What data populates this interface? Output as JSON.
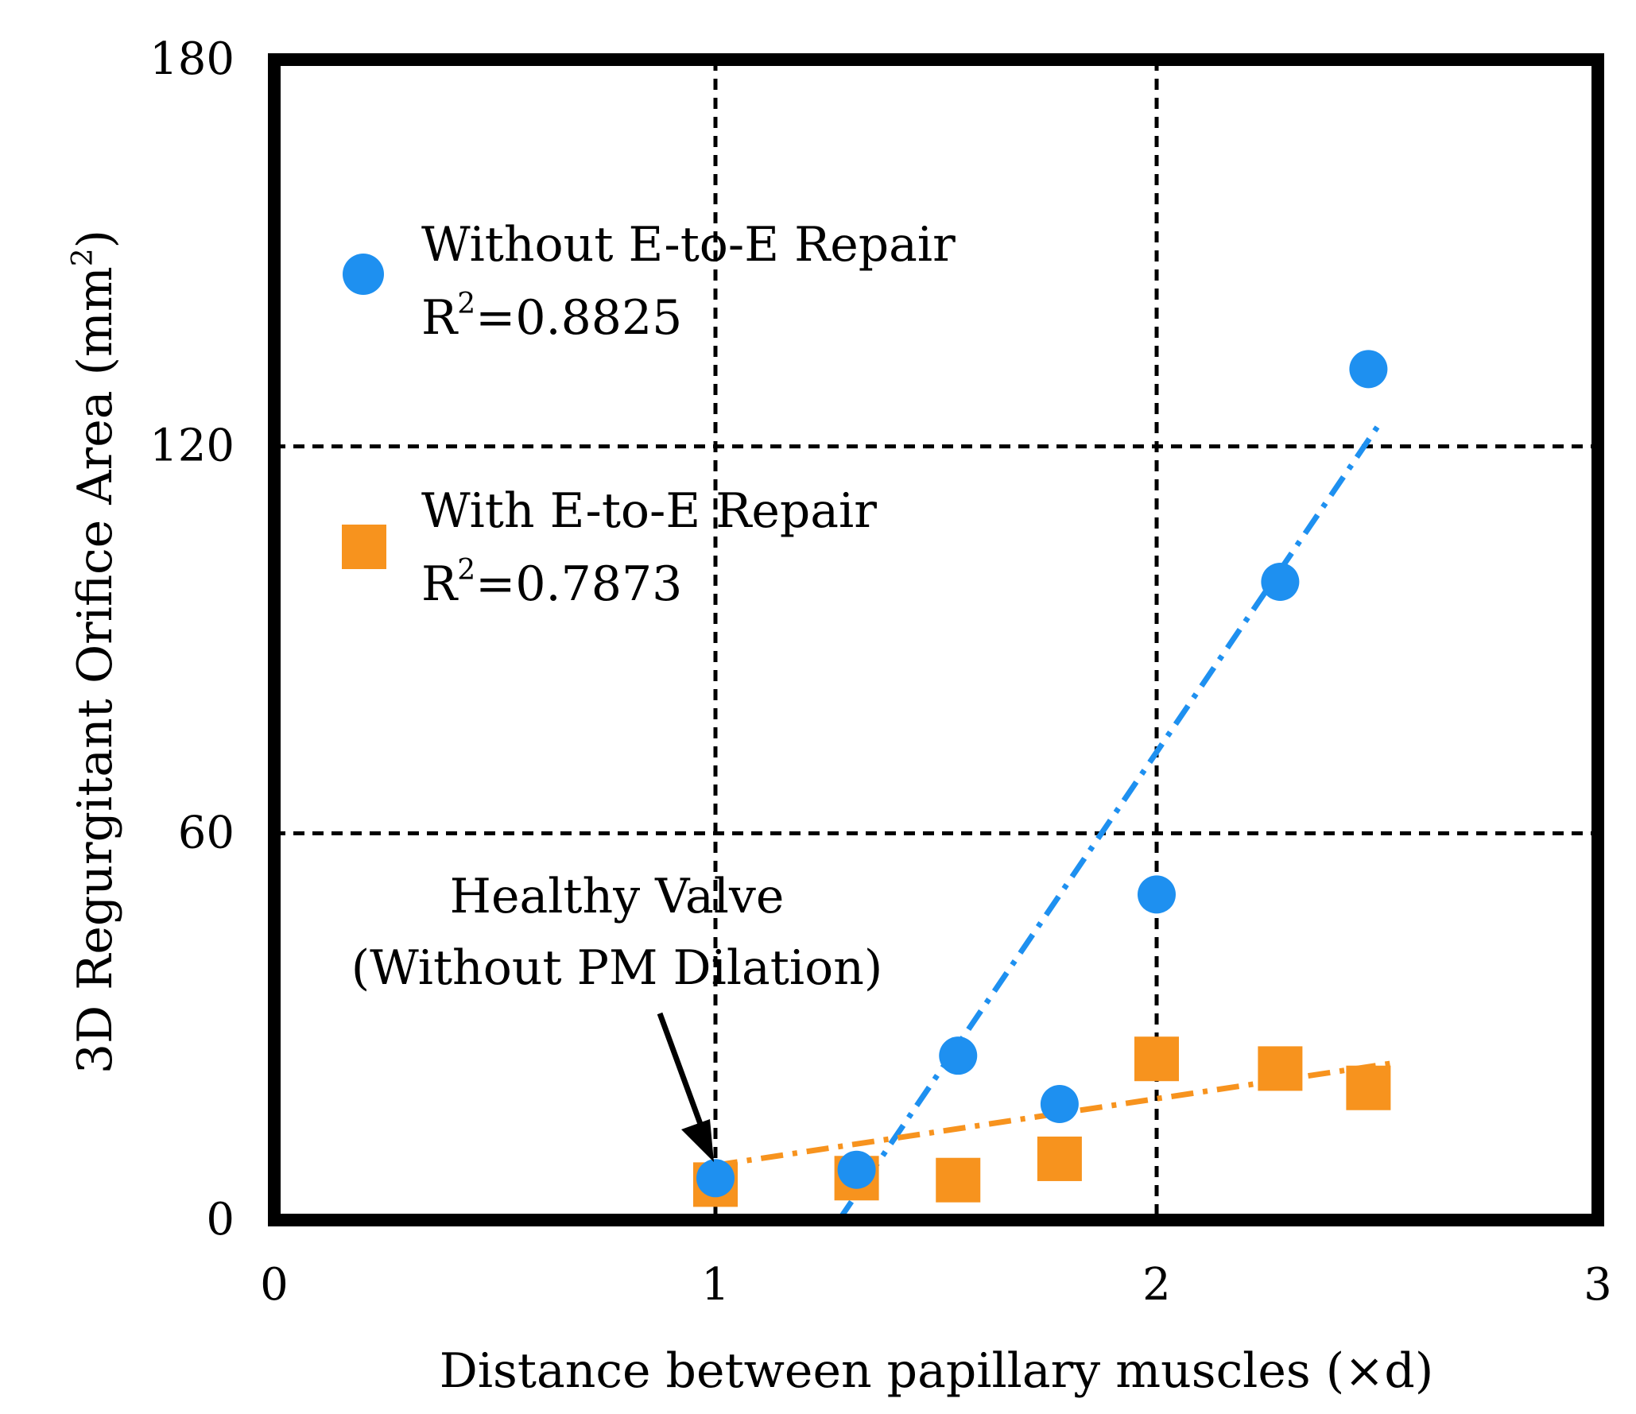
{
  "chart_data": {
    "type": "scatter",
    "xlabel": "Distance between papillary muscles (×d)",
    "ylabel_main": "3D Regurgitant Orifice Area (mm",
    "ylabel_sup": "2",
    "ylabel_close": ")",
    "xlim": [
      0,
      3
    ],
    "ylim": [
      0,
      180
    ],
    "x_ticks": [
      "0",
      "1",
      "2",
      "3"
    ],
    "y_ticks": [
      "0",
      "60",
      "120",
      "180"
    ],
    "x_tick_values": [
      0,
      1,
      2,
      3
    ],
    "y_tick_values": [
      0,
      60,
      120,
      180
    ],
    "gridlines": {
      "x": [
        1,
        2
      ],
      "y": [
        60,
        120
      ],
      "style": "dashed"
    },
    "series": [
      {
        "name": "Without E-to-E Repair",
        "r2_prefix": "R",
        "r2_sup": "2",
        "r2_value": "=0.8825",
        "marker": "circle",
        "color": "#1E90F0",
        "points": [
          {
            "x": 1.0,
            "y": 6.5
          },
          {
            "x": 1.32,
            "y": 7.8
          },
          {
            "x": 1.55,
            "y": 25.5
          },
          {
            "x": 1.78,
            "y": 18.0
          },
          {
            "x": 2.0,
            "y": 50.5
          },
          {
            "x": 2.28,
            "y": 99.0
          },
          {
            "x": 2.48,
            "y": 132.0
          }
        ],
        "trendline": {
          "x": [
            1.28,
            2.5
          ],
          "y": [
            0.0,
            123.0
          ]
        }
      },
      {
        "name": "With E-to-E Repair",
        "r2_prefix": "R",
        "r2_sup": "2",
        "r2_value": "=0.7873",
        "marker": "square",
        "color": "#F7931E",
        "points": [
          {
            "x": 1.0,
            "y": 5.5
          },
          {
            "x": 1.32,
            "y": 6.5
          },
          {
            "x": 1.55,
            "y": 6.2
          },
          {
            "x": 1.78,
            "y": 9.5
          },
          {
            "x": 2.0,
            "y": 25.0
          },
          {
            "x": 2.28,
            "y": 23.5
          },
          {
            "x": 2.48,
            "y": 20.5
          }
        ],
        "trendline": {
          "x": [
            1.0,
            2.55
          ],
          "y": [
            8.5,
            24.5
          ]
        }
      }
    ],
    "annotation": {
      "line1": "Healthy Valve",
      "line2": "(Without PM Dilation)",
      "points_to": {
        "x": 1.0,
        "y": 6.5
      }
    }
  }
}
